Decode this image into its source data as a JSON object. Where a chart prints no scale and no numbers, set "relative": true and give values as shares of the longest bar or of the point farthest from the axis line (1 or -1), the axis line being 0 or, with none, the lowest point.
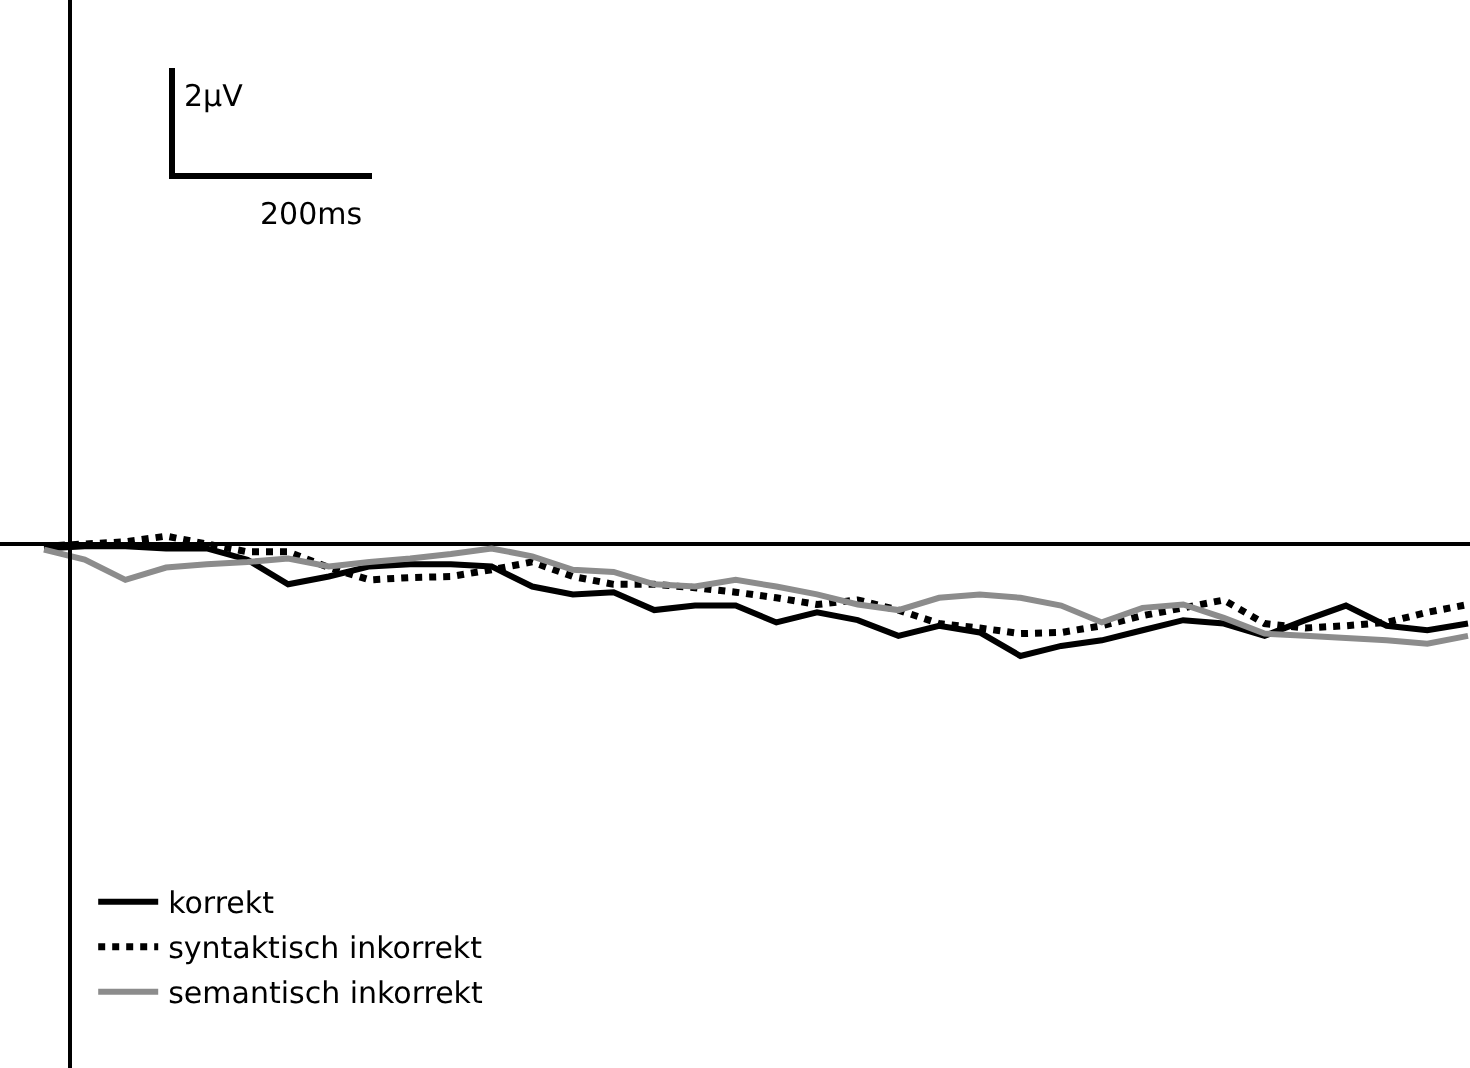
{
  "chart_data": {
    "type": "line",
    "relative": true,
    "legend": "bottom left",
    "annotations": [
      "2µV",
      "200ms"
    ],
    "categories": [
      null,
      null,
      null,
      null,
      null,
      null,
      null,
      null,
      null,
      null,
      null,
      null,
      null,
      null,
      null,
      null,
      null,
      null,
      null,
      null,
      null,
      null,
      null,
      null,
      null,
      null,
      null,
      null,
      null,
      null,
      null,
      null,
      null,
      null,
      null,
      null
    ],
    "series": [
      {
        "name": "korrekt",
        "color": "#000000",
        "line_style": "solid",
        "values": [
          -0.04,
          -0.02,
          -0.02,
          -0.04,
          -0.04,
          -0.14,
          -0.36,
          -0.29,
          -0.2,
          -0.18,
          -0.18,
          -0.2,
          -0.38,
          -0.45,
          -0.43,
          -0.59,
          -0.55,
          -0.55,
          -0.7,
          -0.61,
          -0.68,
          -0.82,
          -0.73,
          -0.79,
          -1,
          -0.91,
          -0.86,
          -0.77,
          -0.68,
          -0.71,
          -0.82,
          -0.68,
          -0.55,
          -0.73,
          -0.77,
          -0.71
        ]
      },
      {
        "name": "syntaktisch inkorrekt",
        "color": "#000000",
        "line_style": "dotted",
        "values": [
          -0.02,
          0,
          0.02,
          0.07,
          0,
          -0.07,
          -0.07,
          -0.21,
          -0.32,
          -0.3,
          -0.29,
          -0.23,
          -0.16,
          -0.29,
          -0.36,
          -0.36,
          -0.39,
          -0.43,
          -0.48,
          -0.54,
          -0.5,
          -0.59,
          -0.71,
          -0.75,
          -0.8,
          -0.79,
          -0.73,
          -0.64,
          -0.57,
          -0.5,
          -0.71,
          -0.75,
          -0.73,
          -0.7,
          -0.61,
          -0.54
        ]
      },
      {
        "name": "semantisch inkorrekt",
        "color": "#8c8c8c",
        "line_style": "solid",
        "values": [
          -0.05,
          -0.14,
          -0.32,
          -0.21,
          -0.18,
          -0.16,
          -0.13,
          -0.2,
          -0.16,
          -0.13,
          -0.09,
          -0.04,
          -0.11,
          -0.23,
          -0.25,
          -0.36,
          -0.38,
          -0.32,
          -0.38,
          -0.45,
          -0.54,
          -0.59,
          -0.48,
          -0.45,
          -0.48,
          -0.55,
          -0.7,
          -0.57,
          -0.54,
          -0.66,
          -0.8,
          -0.82,
          -0.84,
          -0.86,
          -0.89,
          -0.82
        ]
      }
    ]
  }
}
